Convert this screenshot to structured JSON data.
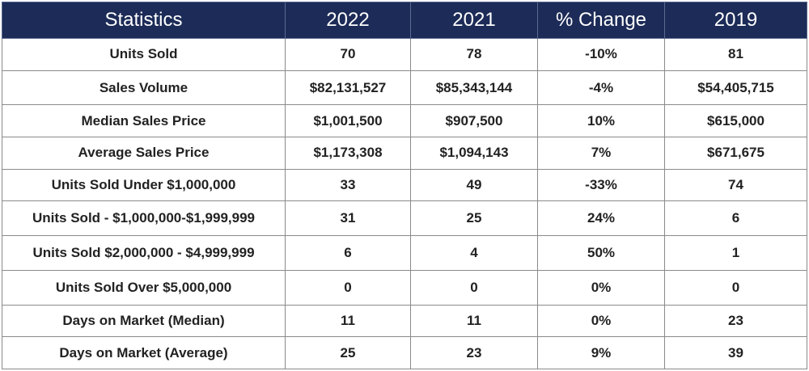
{
  "headers": [
    "Statistics",
    "2022",
    "2021",
    "% Change",
    "2019"
  ],
  "rows": [
    [
      "Units Sold",
      "70",
      "78",
      "-10%",
      "81"
    ],
    [
      "Sales Volume",
      "$82,131,527",
      "$85,343,144",
      "-4%",
      "$54,405,715"
    ],
    [
      "Median Sales Price",
      "$1,001,500",
      "$907,500",
      "10%",
      "$615,000"
    ],
    [
      "Average Sales Price",
      "$1,173,308",
      "$1,094,143",
      "7%",
      "$671,675"
    ],
    [
      "Units Sold Under $1,000,000",
      "33",
      "49",
      "-33%",
      "74"
    ],
    [
      "Units Sold - $1,000,000-$1,999,999",
      "31",
      "25",
      "24%",
      "6"
    ],
    [
      "Units Sold $2,000,000 - $4,999,999",
      "6",
      "4",
      "50%",
      "1"
    ],
    [
      "Units Sold Over $5,000,000",
      "0",
      "0",
      "0%",
      "0"
    ],
    [
      "Days on Market (Median)",
      "11",
      "11",
      "0%",
      "23"
    ],
    [
      "Days on Market (Average)",
      "25",
      "23",
      "9%",
      "39"
    ]
  ],
  "colors": {
    "header_bg": "#1c2b57",
    "header_text": "#ffffff",
    "cell_text": "#222222",
    "border": "#8a8a8a"
  }
}
